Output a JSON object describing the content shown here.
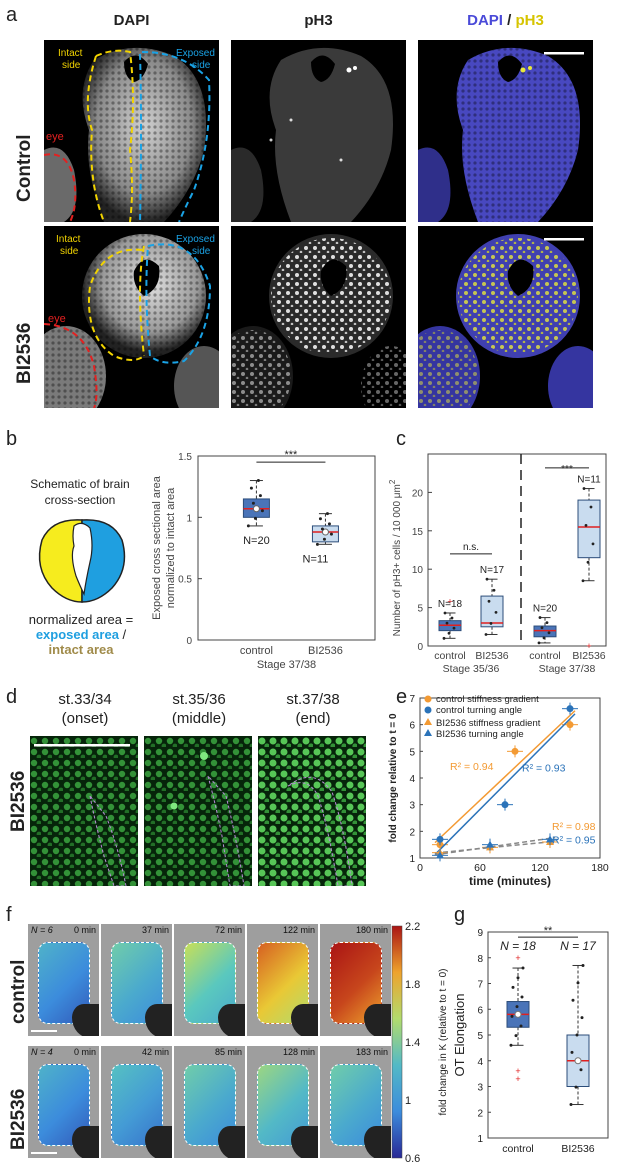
{
  "panels": {
    "a": "a",
    "b": "b",
    "c": "c",
    "d": "d",
    "e": "e",
    "f": "f",
    "g": "g"
  },
  "panel_a": {
    "col_dapi": "DAPI",
    "col_ph3": "pH3",
    "col_merge_1": "DAPI",
    "col_merge_sep": " / ",
    "col_merge_2": "pH3",
    "row_control": "Control",
    "row_bi": "BI2536",
    "intact_1": "Intact",
    "intact_2": "side",
    "exposed_1": "Exposed",
    "exposed_2": "side",
    "eye": "eye",
    "colors": {
      "dapi": "#4a4ad8",
      "ph3": "#e8e83a",
      "intact": "#f2d400",
      "exposed": "#1aa3e6",
      "eye": "#e32020"
    }
  },
  "panel_b": {
    "schematic_title_1": "Schematic of brain",
    "schematic_title_2": "cross-section",
    "eq_1": "normalized area =",
    "eq_2": "exposed area",
    "eq_3": " /",
    "eq_4": "intact area",
    "chart_data": {
      "type": "box",
      "ylabel_1": "Exposed cross sectional area",
      "ylabel_2": "normalized to intact area",
      "xlabel": "Stage 37/38",
      "categories": [
        "control",
        "BI2536"
      ],
      "ylim": [
        0,
        1.5
      ],
      "yticks": [
        "0",
        "0.5",
        "1",
        "1.5"
      ],
      "sig": "***",
      "n_labels": [
        "N=20",
        "N=11"
      ],
      "boxes": [
        {
          "name": "control",
          "q1": 1.0,
          "median": 1.07,
          "q3": 1.15,
          "min": 0.93,
          "max": 1.3,
          "mean": 1.07
        },
        {
          "name": "BI2536",
          "q1": 0.8,
          "median": 0.88,
          "q3": 0.93,
          "min": 0.78,
          "max": 1.03,
          "mean": 0.88
        }
      ]
    }
  },
  "panel_c": {
    "chart_data": {
      "type": "box",
      "ylabel_1": "Number of pH3+ cells / 10 000 μm",
      "ylabel_sup": "2",
      "categories": [
        "control",
        "BI2536",
        "control",
        "BI2536"
      ],
      "group_labels": [
        "Stage 35/36",
        "Stage 37/38"
      ],
      "ylim": [
        0,
        25
      ],
      "yticks": [
        "0",
        "5",
        "10",
        "15",
        "20"
      ],
      "sig": [
        "n.s.",
        "***"
      ],
      "n_labels": [
        "N=18",
        "N=17",
        "N=20",
        "N=11"
      ],
      "boxes": [
        {
          "name": "control",
          "q1": 2.0,
          "median": 2.7,
          "q3": 3.3,
          "min": 1.0,
          "max": 4.3,
          "outlier": 5.8
        },
        {
          "name": "BI2536",
          "q1": 2.5,
          "median": 3.0,
          "q3": 6.5,
          "min": 1.5,
          "max": 8.7
        },
        {
          "name": "control",
          "q1": 1.2,
          "median": 2.0,
          "q3": 2.6,
          "min": 0.4,
          "max": 3.7
        },
        {
          "name": "BI2536",
          "q1": 11.5,
          "median": 15.5,
          "q3": 19.0,
          "min": 8.5,
          "max": 20.5,
          "outlier": 0
        }
      ]
    }
  },
  "panel_d": {
    "titles": [
      "st.33/34",
      "st.35/36",
      "st.37/38"
    ],
    "subtitles": [
      "(onset)",
      "(middle)",
      "(end)"
    ],
    "row_label": "BI2536"
  },
  "panel_e": {
    "chart_data": {
      "type": "scatter",
      "xlabel": "time (minutes)",
      "ylabel": "fold change relative to t = 0",
      "xlim": [
        0,
        180
      ],
      "ylim": [
        1,
        7
      ],
      "xticks": [
        "0",
        "60",
        "120",
        "180"
      ],
      "yticks": [
        "1",
        "2",
        "3",
        "4",
        "5",
        "6",
        "7"
      ],
      "legend": [
        "control stiffness gradient",
        "control turning angle",
        "BI2536 stiffness gradient",
        "BI2536 turning angle"
      ],
      "colors": {
        "control_stiff": "#f39a33",
        "control_turn": "#2b73b9",
        "bi_stiff": "#f39a33",
        "bi_turn": "#2b73b9"
      },
      "series": [
        {
          "name": "control stiffness gradient",
          "x": [
            20,
            95,
            150
          ],
          "y": [
            1.5,
            5.0,
            6.0
          ]
        },
        {
          "name": "control turning angle",
          "x": [
            20,
            85,
            150
          ],
          "y": [
            1.7,
            3.0,
            6.6
          ]
        },
        {
          "name": "BI2536 stiffness gradient",
          "x": [
            20,
            70,
            130
          ],
          "y": [
            1.2,
            1.4,
            1.6
          ]
        },
        {
          "name": "BI2536 turning angle",
          "x": [
            20,
            70,
            130
          ],
          "y": [
            1.1,
            1.5,
            1.7
          ]
        }
      ],
      "r2": [
        "R² = 0.94",
        "R² = 0.93",
        "R² = 0.98",
        "R² = 0.95"
      ]
    }
  },
  "panel_f": {
    "row_control": "control",
    "row_bi": "BI2536",
    "n_control": "N = 6",
    "n_bi": "N = 4",
    "times_control": [
      "0 min",
      "37 min",
      "72 min",
      "122 min",
      "180 min"
    ],
    "times_bi": [
      "0 min",
      "42 min",
      "85 min",
      "128 min",
      "183 min"
    ],
    "colorbar_ticks": [
      "2.2",
      "1.8",
      "1.4",
      "1",
      "0.6"
    ],
    "colorbar_label": "fold change in K (relative to t = 0)",
    "control_levels": [
      1.0,
      1.2,
      1.4,
      1.8,
      2.1
    ],
    "bi_levels": [
      1.0,
      1.1,
      1.2,
      1.3,
      1.2
    ]
  },
  "panel_g": {
    "chart_data": {
      "type": "box",
      "ylabel": "OT Elongation",
      "categories": [
        "control",
        "BI2536"
      ],
      "ylim": [
        1,
        9
      ],
      "yticks": [
        "1",
        "2",
        "3",
        "4",
        "5",
        "6",
        "7",
        "8",
        "9"
      ],
      "sig": "**",
      "n_labels": [
        "N = 18",
        "N = 17"
      ],
      "boxes": [
        {
          "name": "control",
          "q1": 5.3,
          "median": 5.8,
          "q3": 6.3,
          "min": 4.6,
          "max": 7.6,
          "outliers": [
            3.3,
            3.6,
            8.0
          ]
        },
        {
          "name": "BI2536",
          "q1": 3.0,
          "median": 4.0,
          "q3": 5.0,
          "min": 2.3,
          "max": 7.7
        }
      ]
    }
  }
}
